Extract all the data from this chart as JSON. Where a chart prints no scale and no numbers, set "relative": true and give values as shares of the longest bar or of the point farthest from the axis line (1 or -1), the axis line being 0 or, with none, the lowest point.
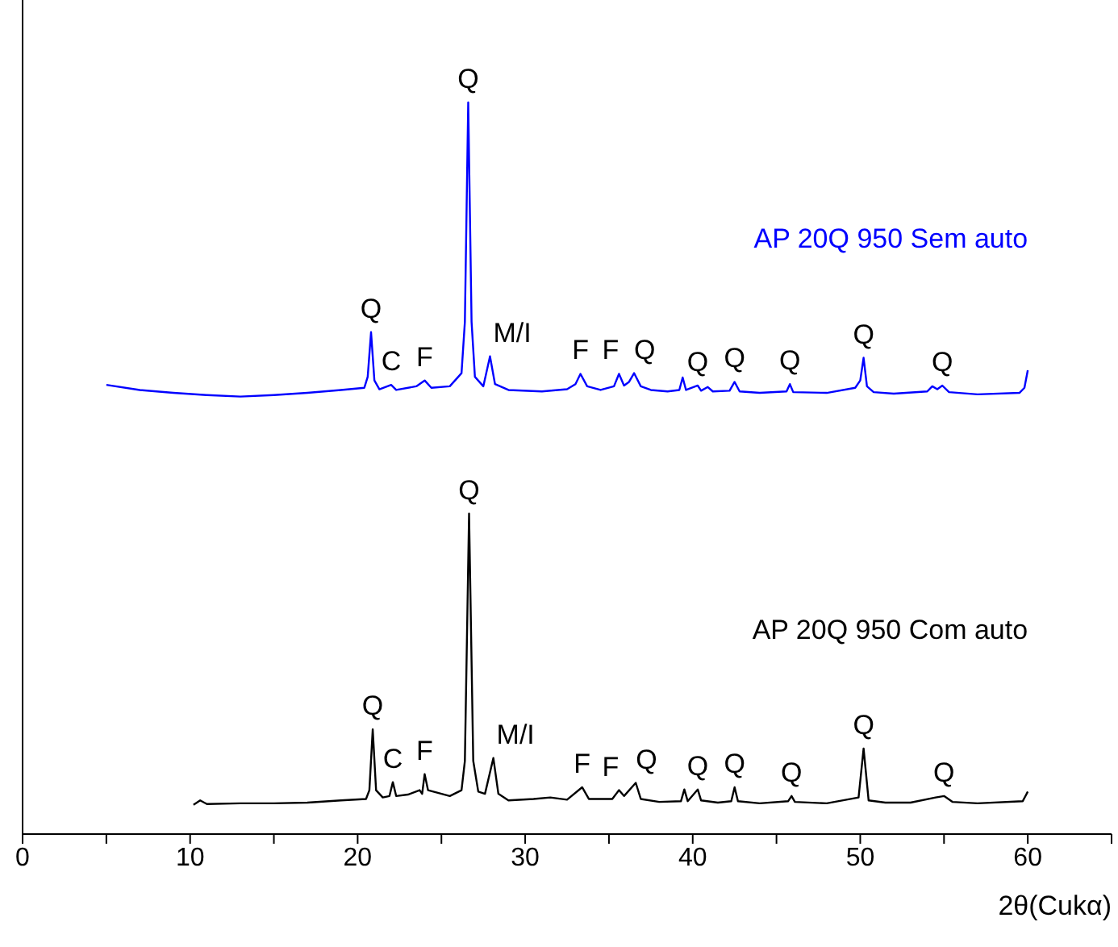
{
  "chart_data": {
    "type": "line",
    "relative": true,
    "xlabel": "2θ(Cukα)",
    "xlim": [
      0,
      65
    ],
    "xticks": [
      0,
      {
        "value": 5,
        "label": null
      },
      10,
      {
        "value": 15,
        "label": null
      },
      20,
      {
        "value": 25,
        "label": null
      },
      30,
      {
        "value": 35,
        "label": null
      },
      40,
      {
        "value": 45,
        "label": null
      },
      50,
      {
        "value": 55,
        "label": null
      },
      60,
      {
        "value": 65,
        "label": null
      }
    ],
    "grid": false,
    "legend": false,
    "marker": "none",
    "line_style": "solid",
    "series": [
      {
        "name": "AP 20Q 950 Sem auto",
        "color": "#0000ff",
        "x": [
          5,
          7,
          9,
          11,
          13,
          15,
          17,
          19,
          20.4,
          20.6,
          20.8,
          21.0,
          21.3,
          22.0,
          22.3,
          23.5,
          24.0,
          24.4,
          25.5,
          26.2,
          26.4,
          26.6,
          26.8,
          27.0,
          27.5,
          27.9,
          28.2,
          29,
          31,
          32.5,
          33.0,
          33.3,
          33.7,
          34.5,
          35.3,
          35.6,
          35.9,
          36.2,
          36.5,
          36.9,
          37.5,
          38.5,
          39.2,
          39.4,
          39.6,
          40.3,
          40.5,
          40.9,
          41.2,
          42.2,
          42.5,
          42.8,
          44,
          45.6,
          45.8,
          46.0,
          48,
          49.7,
          50.0,
          50.2,
          50.4,
          50.8,
          52,
          54.0,
          54.3,
          54.6,
          54.9,
          55.3,
          57,
          59.5,
          59.8,
          60
        ],
        "values": [
          0.614,
          0.607,
          0.603,
          0.6,
          0.598,
          0.6,
          0.603,
          0.607,
          0.61,
          0.625,
          0.686,
          0.62,
          0.608,
          0.614,
          0.607,
          0.612,
          0.62,
          0.61,
          0.612,
          0.63,
          0.7,
          1.0,
          0.7,
          0.625,
          0.612,
          0.653,
          0.615,
          0.607,
          0.605,
          0.608,
          0.615,
          0.629,
          0.612,
          0.607,
          0.612,
          0.629,
          0.613,
          0.618,
          0.63,
          0.612,
          0.607,
          0.605,
          0.607,
          0.624,
          0.607,
          0.613,
          0.606,
          0.611,
          0.605,
          0.606,
          0.618,
          0.605,
          0.603,
          0.605,
          0.615,
          0.604,
          0.603,
          0.61,
          0.62,
          0.651,
          0.612,
          0.604,
          0.602,
          0.605,
          0.612,
          0.608,
          0.613,
          0.604,
          0.601,
          0.603,
          0.61,
          0.634
        ]
      },
      {
        "name": "AP 20Q 950 Com auto",
        "color": "#000000",
        "x": [
          10.2,
          10.6,
          11,
          13,
          15,
          17,
          19,
          20.5,
          20.7,
          20.9,
          21.1,
          21.5,
          21.9,
          22.1,
          22.3,
          23.0,
          23.7,
          23.85,
          24.0,
          24.2,
          24.7,
          25.5,
          26.2,
          26.4,
          26.65,
          26.9,
          27.2,
          27.6,
          28.1,
          28.4,
          29,
          30.5,
          31.5,
          32.5,
          33.4,
          33.8,
          35.2,
          35.6,
          35.9,
          36.6,
          36.9,
          38,
          39.3,
          39.5,
          39.7,
          40.3,
          40.5,
          41.5,
          42.3,
          42.5,
          42.7,
          44,
          45.7,
          45.9,
          46.1,
          48,
          49.9,
          50.2,
          50.5,
          51.5,
          53,
          54.5,
          55,
          55.5,
          57,
          59.7,
          60
        ],
        "values": [
          0.04,
          0.046,
          0.041,
          0.042,
          0.042,
          0.043,
          0.046,
          0.048,
          0.06,
          0.143,
          0.06,
          0.05,
          0.052,
          0.071,
          0.052,
          0.054,
          0.06,
          0.055,
          0.082,
          0.06,
          0.057,
          0.052,
          0.06,
          0.1,
          0.438,
          0.1,
          0.058,
          0.055,
          0.104,
          0.055,
          0.046,
          0.048,
          0.05,
          0.047,
          0.064,
          0.048,
          0.048,
          0.06,
          0.052,
          0.07,
          0.048,
          0.044,
          0.045,
          0.061,
          0.045,
          0.061,
          0.046,
          0.043,
          0.045,
          0.064,
          0.045,
          0.042,
          0.045,
          0.052,
          0.044,
          0.042,
          0.05,
          0.117,
          0.046,
          0.043,
          0.043,
          0.05,
          0.052,
          0.044,
          0.042,
          0.045,
          0.058
        ]
      }
    ],
    "annotations": [
      {
        "text": "Q",
        "x": 26.6,
        "y": 1.0
      },
      {
        "text": "Q",
        "x": 20.8,
        "y": 0.686
      },
      {
        "text": "C",
        "x": 22.0,
        "y": 0.614
      },
      {
        "text": "F",
        "x": 24.0,
        "y": 0.62
      },
      {
        "text": "M/I",
        "x": 27.9,
        "y": 0.653
      },
      {
        "text": "F",
        "x": 33.3,
        "y": 0.629
      },
      {
        "text": "F",
        "x": 35.6,
        "y": 0.629
      },
      {
        "text": "Q",
        "x": 36.5,
        "y": 0.63
      },
      {
        "text": "Q",
        "x": 40.3,
        "y": 0.613
      },
      {
        "text": "Q",
        "x": 42.5,
        "y": 0.618
      },
      {
        "text": "Q",
        "x": 45.8,
        "y": 0.615
      },
      {
        "text": "Q",
        "x": 50.2,
        "y": 0.651
      },
      {
        "text": "Q",
        "x": 54.9,
        "y": 0.613
      },
      {
        "text": "Q",
        "x": 26.65,
        "y": 0.438
      },
      {
        "text": "Q",
        "x": 20.9,
        "y": 0.143
      },
      {
        "text": "C",
        "x": 22.1,
        "y": 0.071
      },
      {
        "text": "F",
        "x": 24.0,
        "y": 0.082
      },
      {
        "text": "M/I",
        "x": 28.1,
        "y": 0.104
      },
      {
        "text": "F",
        "x": 33.4,
        "y": 0.064
      },
      {
        "text": "F",
        "x": 35.6,
        "y": 0.06
      },
      {
        "text": "Q",
        "x": 36.6,
        "y": 0.07
      },
      {
        "text": "Q",
        "x": 40.3,
        "y": 0.061
      },
      {
        "text": "Q",
        "x": 42.5,
        "y": 0.064
      },
      {
        "text": "Q",
        "x": 45.9,
        "y": 0.052
      },
      {
        "text": "Q",
        "x": 50.2,
        "y": 0.117
      },
      {
        "text": "Q",
        "x": 55.0,
        "y": 0.052
      }
    ]
  }
}
